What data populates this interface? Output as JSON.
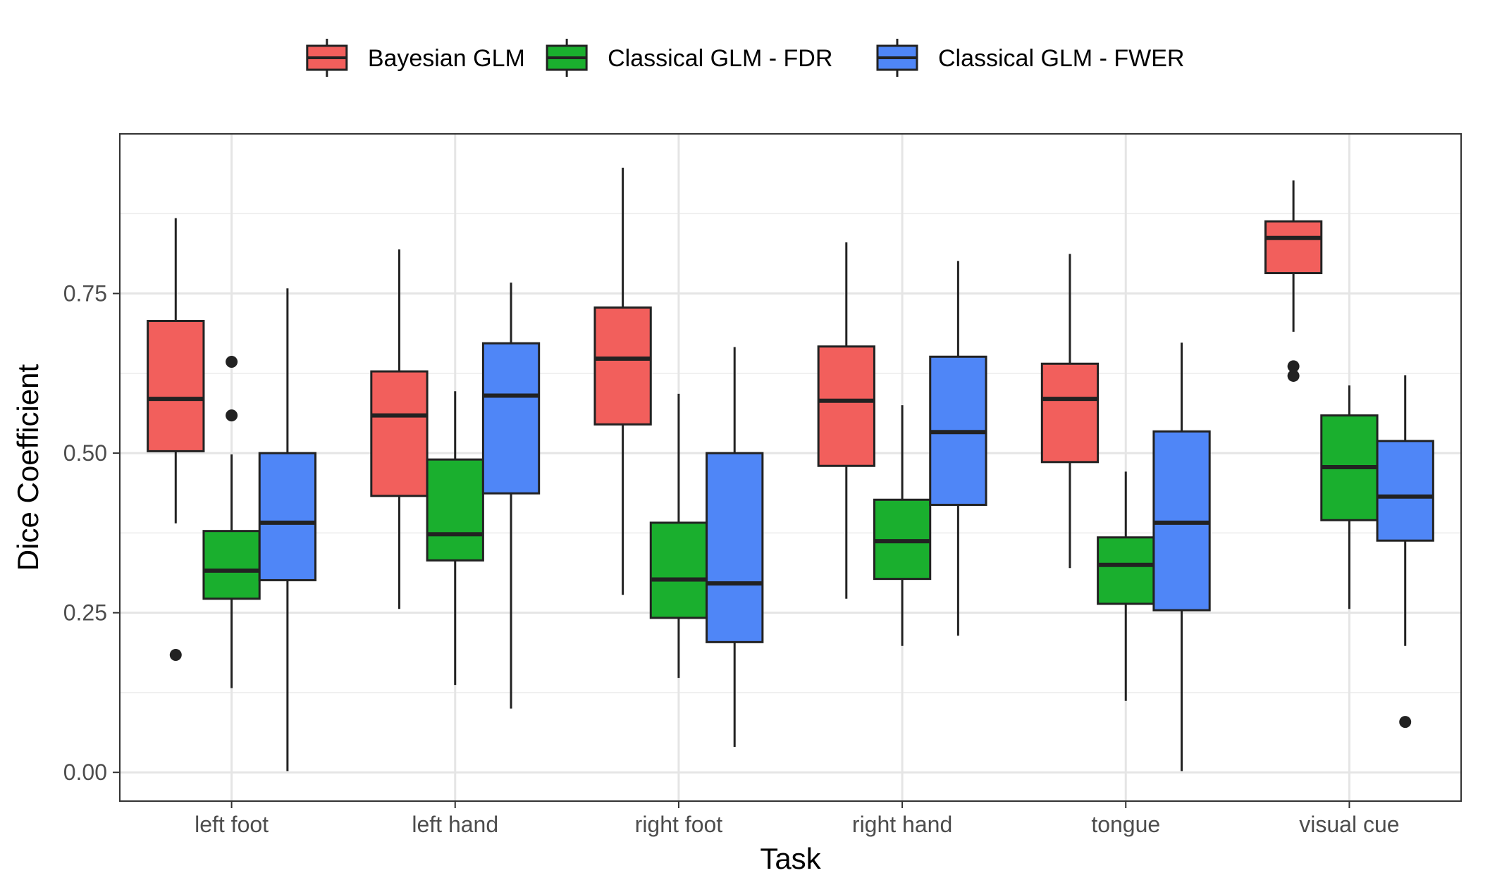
{
  "chart_data": {
    "type": "boxplot",
    "title": "",
    "xlabel": "Task",
    "ylabel": "Dice Coefficient",
    "categories": [
      "left foot",
      "left hand",
      "right foot",
      "right hand",
      "tongue",
      "visual cue"
    ],
    "yticks": [
      "0.00",
      "0.25",
      "0.50",
      "0.75"
    ],
    "ylim": [
      -0.045,
      1.0
    ],
    "grid": true,
    "legend_position": "top",
    "series": [
      {
        "name": "Bayesian GLM",
        "color": "#F25F5C",
        "boxes": [
          {
            "min": 0.39,
            "q1": 0.503,
            "median": 0.585,
            "q3": 0.707,
            "max": 0.868,
            "outliers": [
              0.184
            ]
          },
          {
            "min": 0.256,
            "q1": 0.433,
            "median": 0.559,
            "q3": 0.628,
            "max": 0.819,
            "outliers": []
          },
          {
            "min": 0.278,
            "q1": 0.545,
            "median": 0.648,
            "q3": 0.728,
            "max": 0.947,
            "outliers": []
          },
          {
            "min": 0.272,
            "q1": 0.48,
            "median": 0.582,
            "q3": 0.667,
            "max": 0.83,
            "outliers": []
          },
          {
            "min": 0.32,
            "q1": 0.486,
            "median": 0.585,
            "q3": 0.64,
            "max": 0.812,
            "outliers": []
          },
          {
            "min": 0.69,
            "q1": 0.782,
            "median": 0.837,
            "q3": 0.863,
            "max": 0.927,
            "outliers": [
              0.636,
              0.621
            ]
          }
        ]
      },
      {
        "name": "Classical GLM - FDR",
        "color": "#1AAF2E",
        "boxes": [
          {
            "min": 0.132,
            "q1": 0.272,
            "median": 0.316,
            "q3": 0.378,
            "max": 0.498,
            "outliers": [
              0.643,
              0.559
            ]
          },
          {
            "min": 0.137,
            "q1": 0.332,
            "median": 0.373,
            "q3": 0.49,
            "max": 0.597,
            "outliers": []
          },
          {
            "min": 0.148,
            "q1": 0.242,
            "median": 0.302,
            "q3": 0.391,
            "max": 0.593,
            "outliers": []
          },
          {
            "min": 0.198,
            "q1": 0.303,
            "median": 0.362,
            "q3": 0.427,
            "max": 0.575,
            "outliers": []
          },
          {
            "min": 0.112,
            "q1": 0.264,
            "median": 0.325,
            "q3": 0.368,
            "max": 0.471,
            "outliers": []
          },
          {
            "min": 0.256,
            "q1": 0.395,
            "median": 0.478,
            "q3": 0.559,
            "max": 0.606,
            "outliers": []
          }
        ]
      },
      {
        "name": "Classical GLM - FWER",
        "color": "#4F86F7",
        "boxes": [
          {
            "min": 0.002,
            "q1": 0.301,
            "median": 0.391,
            "q3": 0.5,
            "max": 0.758,
            "outliers": []
          },
          {
            "min": 0.1,
            "q1": 0.437,
            "median": 0.59,
            "q3": 0.672,
            "max": 0.767,
            "outliers": []
          },
          {
            "min": 0.04,
            "q1": 0.204,
            "median": 0.296,
            "q3": 0.5,
            "max": 0.666,
            "outliers": []
          },
          {
            "min": 0.214,
            "q1": 0.419,
            "median": 0.533,
            "q3": 0.651,
            "max": 0.801,
            "outliers": []
          },
          {
            "min": 0.002,
            "q1": 0.254,
            "median": 0.391,
            "q3": 0.534,
            "max": 0.673,
            "outliers": []
          },
          {
            "min": 0.198,
            "q1": 0.363,
            "median": 0.432,
            "q3": 0.519,
            "max": 0.622,
            "outliers": [
              0.079
            ]
          }
        ]
      }
    ]
  }
}
